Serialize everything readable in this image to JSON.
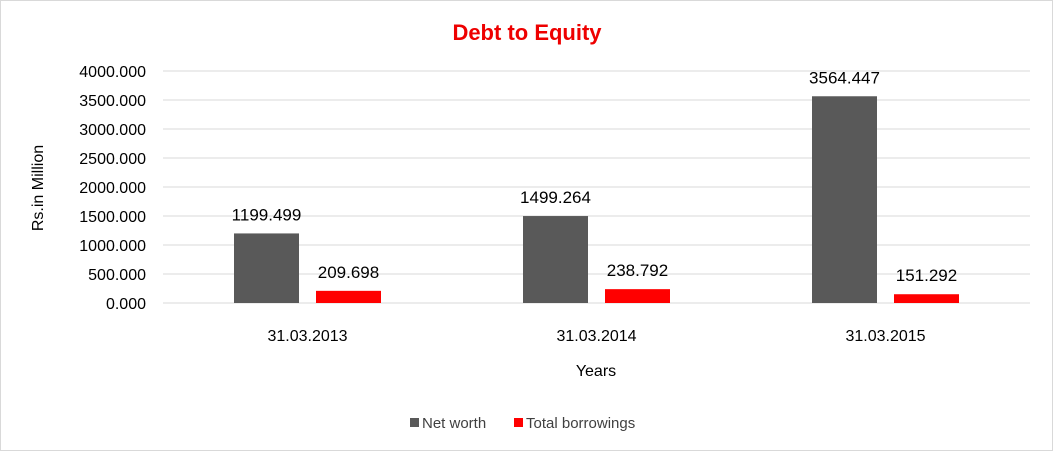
{
  "chart_data": {
    "type": "bar",
    "title": "Debt to Equity",
    "xlabel": "Years",
    "ylabel": "Rs.in Million",
    "categories": [
      "31.03.2013",
      "31.03.2014",
      "31.03.2015"
    ],
    "series": [
      {
        "name": "Net worth",
        "values": [
          1199.499,
          1499.264,
          3564.447
        ],
        "labels": [
          "1199.499",
          "1499.264",
          "3564.447"
        ]
      },
      {
        "name": "Total borrowings",
        "values": [
          209.698,
          238.792,
          151.292
        ],
        "labels": [
          "209.698",
          "238.792",
          "151.292"
        ]
      }
    ],
    "ylim": [
      0,
      4000
    ],
    "yticks": [
      "0.000",
      "500.000",
      "1000.000",
      "1500.000",
      "2000.000",
      "2500.000",
      "3000.000",
      "3500.000",
      "4000.000"
    ],
    "grid": true,
    "legend": "bottom"
  },
  "colors": {
    "title": "#ee0000",
    "series": [
      "#595959",
      "#ff0000"
    ],
    "grid": "#d9d9d9"
  }
}
